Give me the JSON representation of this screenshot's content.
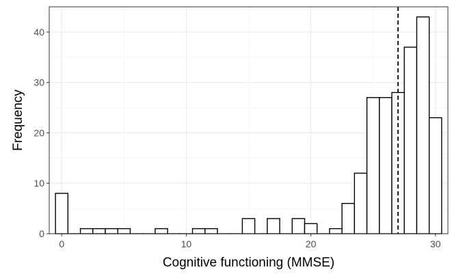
{
  "chart_data": {
    "type": "bar",
    "title": "",
    "xlabel": "Cognitive functioning (MMSE)",
    "ylabel": "Frequency",
    "xlim": [
      -1,
      31
    ],
    "ylim": [
      0,
      45
    ],
    "bin_width": 1,
    "x": [
      0,
      1,
      2,
      3,
      4,
      5,
      6,
      7,
      8,
      9,
      10,
      11,
      12,
      13,
      14,
      15,
      16,
      17,
      18,
      19,
      20,
      21,
      22,
      23,
      24,
      25,
      26,
      27,
      28,
      29,
      30
    ],
    "values": [
      8,
      0,
      1,
      1,
      1,
      1,
      0,
      0,
      1,
      0,
      0,
      1,
      1,
      0,
      0,
      3,
      0,
      3,
      0,
      3,
      2,
      0,
      1,
      6,
      12,
      27,
      27,
      28,
      37,
      43,
      23
    ],
    "x_ticks": [
      0,
      10,
      20,
      30
    ],
    "y_ticks": [
      0,
      10,
      20,
      30,
      40
    ],
    "reference_line": {
      "x": 27,
      "style": "dashed"
    },
    "grid": true,
    "colors": {
      "bar_fill": "#ffffff",
      "bar_stroke": "#000000",
      "grid_major": "#ebebeb",
      "grid_minor": "#f4f4f4",
      "reference_line": "#000000"
    }
  }
}
